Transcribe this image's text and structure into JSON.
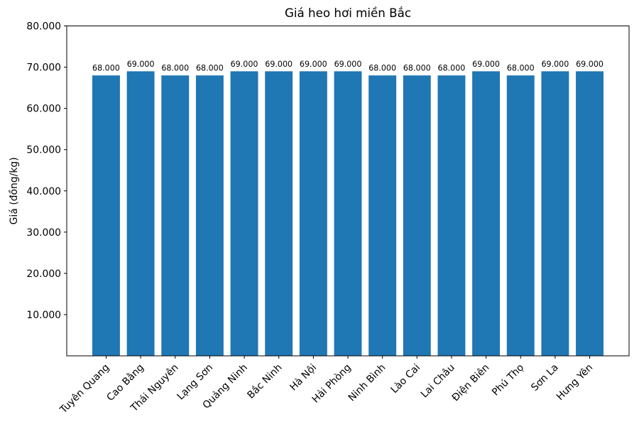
{
  "chart_data": {
    "type": "bar",
    "title": "Giá heo hơi miền Bắc",
    "ylabel": "Giá (đồng/kg)",
    "categories": [
      "Tuyên Quang",
      "Cao Bằng",
      "Thái Nguyên",
      "Lạng Sơn",
      "Quảng Ninh",
      "Bắc Ninh",
      "Hà Nội",
      "Hải Phòng",
      "Ninh Bình",
      "Lào Cai",
      "Lai Châu",
      "Điện Biên",
      "Phú Thọ",
      "Sơn La",
      "Hưng Yên"
    ],
    "values": [
      68000,
      69000,
      68000,
      68000,
      69000,
      69000,
      69000,
      69000,
      68000,
      68000,
      68000,
      69000,
      68000,
      69000,
      69000
    ],
    "value_labels": [
      "68.000",
      "69.000",
      "68.000",
      "68.000",
      "69.000",
      "69.000",
      "69.000",
      "69.000",
      "68.000",
      "68.000",
      "68.000",
      "69.000",
      "68.000",
      "69.000",
      "69.000"
    ],
    "ylim": [
      0,
      80000
    ],
    "yticks": [
      {
        "value": 10000,
        "label": "10.000"
      },
      {
        "value": 20000,
        "label": "20.000"
      },
      {
        "value": 30000,
        "label": "30.000"
      },
      {
        "value": 40000,
        "label": "40.000"
      },
      {
        "value": 50000,
        "label": "50.000"
      },
      {
        "value": 60000,
        "label": "60.000"
      },
      {
        "value": 70000,
        "label": "70.000"
      },
      {
        "value": 80000,
        "label": "80.000"
      }
    ],
    "bar_color": "#1f77b4",
    "text_color": "#000000",
    "grid": false,
    "x_tick_rotation": 45
  }
}
